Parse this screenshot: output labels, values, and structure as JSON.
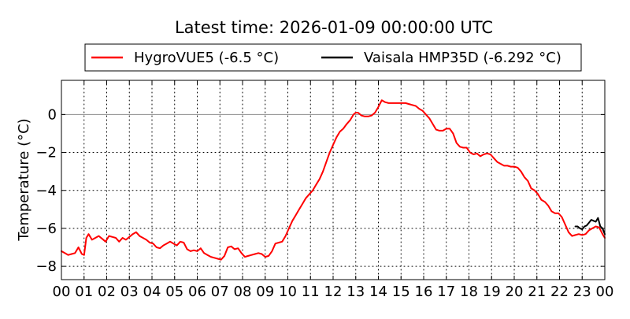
{
  "chart_data": {
    "type": "line",
    "title": "Latest time: 2026-01-09 00:00:00 UTC",
    "xlabel": "",
    "ylabel": "Temperature (°C)",
    "xlim": [
      0,
      24
    ],
    "ylim": [
      -8.7,
      1.8
    ],
    "x_ticks": [
      "00",
      "01",
      "02",
      "03",
      "04",
      "05",
      "06",
      "07",
      "08",
      "09",
      "10",
      "11",
      "12",
      "13",
      "14",
      "15",
      "16",
      "17",
      "18",
      "19",
      "20",
      "21",
      "22",
      "23",
      "00"
    ],
    "y_ticks": [
      -8,
      -6,
      -4,
      -2,
      0
    ],
    "grid": true,
    "legend_position": "top-center",
    "series": [
      {
        "name": "HygroVUE5 (-6.5 °C)",
        "color": "#ff0000",
        "x": [
          0,
          0.15,
          0.3,
          0.45,
          0.6,
          0.75,
          0.9,
          1.0,
          1.1,
          1.2,
          1.35,
          1.5,
          1.65,
          1.8,
          1.95,
          2.1,
          2.25,
          2.4,
          2.55,
          2.7,
          2.85,
          3.0,
          3.15,
          3.3,
          3.45,
          3.6,
          3.75,
          3.9,
          4.05,
          4.2,
          4.35,
          4.5,
          4.65,
          4.8,
          4.95,
          5.1,
          5.25,
          5.4,
          5.55,
          5.7,
          5.85,
          6.0,
          6.15,
          6.3,
          6.45,
          6.6,
          6.75,
          6.9,
          7.05,
          7.2,
          7.35,
          7.5,
          7.65,
          7.8,
          7.95,
          8.1,
          8.25,
          8.4,
          8.55,
          8.7,
          8.85,
          9.0,
          9.15,
          9.3,
          9.45,
          9.6,
          9.75,
          9.9,
          10.05,
          10.2,
          10.35,
          10.5,
          10.65,
          10.8,
          10.95,
          11.1,
          11.25,
          11.4,
          11.55,
          11.7,
          11.85,
          12.0,
          12.15,
          12.3,
          12.45,
          12.6,
          12.75,
          12.9,
          13.0,
          13.1,
          13.25,
          13.4,
          13.55,
          13.7,
          13.85,
          14.0,
          14.15,
          14.3,
          14.45,
          14.6,
          14.75,
          14.9,
          15.05,
          15.2,
          15.35,
          15.5,
          15.65,
          15.8,
          15.95,
          16.1,
          16.25,
          16.4,
          16.55,
          16.7,
          16.85,
          17.0,
          17.15,
          17.3,
          17.45,
          17.6,
          17.75,
          17.9,
          18.05,
          18.2,
          18.35,
          18.5,
          18.65,
          18.8,
          18.95,
          19.1,
          19.25,
          19.4,
          19.55,
          19.7,
          19.85,
          20.0,
          20.15,
          20.3,
          20.45,
          20.6,
          20.75,
          20.9,
          21.05,
          21.2,
          21.35,
          21.5,
          21.65,
          21.8,
          21.95,
          22.1,
          22.25,
          22.4,
          22.55,
          22.7,
          22.85,
          23.0,
          23.15,
          23.3,
          23.45,
          23.6,
          23.75,
          23.9,
          24.0
        ],
        "y": [
          -7.2,
          -7.3,
          -7.4,
          -7.35,
          -7.3,
          -7.0,
          -7.35,
          -7.4,
          -6.5,
          -6.3,
          -6.6,
          -6.5,
          -6.4,
          -6.55,
          -6.7,
          -6.4,
          -6.45,
          -6.5,
          -6.7,
          -6.5,
          -6.6,
          -6.45,
          -6.3,
          -6.2,
          -6.4,
          -6.5,
          -6.6,
          -6.75,
          -6.8,
          -7.0,
          -7.05,
          -6.9,
          -6.8,
          -6.7,
          -6.8,
          -6.9,
          -6.7,
          -6.75,
          -7.1,
          -7.2,
          -7.15,
          -7.2,
          -7.05,
          -7.3,
          -7.4,
          -7.5,
          -7.55,
          -7.6,
          -7.65,
          -7.45,
          -7.0,
          -6.95,
          -7.1,
          -7.05,
          -7.3,
          -7.5,
          -7.45,
          -7.4,
          -7.35,
          -7.3,
          -7.35,
          -7.5,
          -7.45,
          -7.2,
          -6.8,
          -6.75,
          -6.7,
          -6.4,
          -6.0,
          -5.6,
          -5.3,
          -5.0,
          -4.7,
          -4.4,
          -4.2,
          -4.0,
          -3.7,
          -3.4,
          -3.0,
          -2.5,
          -2.0,
          -1.6,
          -1.2,
          -0.9,
          -0.75,
          -0.5,
          -0.3,
          0.0,
          0.1,
          0.1,
          -0.05,
          -0.1,
          -0.1,
          -0.05,
          0.1,
          0.4,
          0.75,
          0.65,
          0.6,
          0.6,
          0.6,
          0.6,
          0.6,
          0.6,
          0.55,
          0.5,
          0.45,
          0.3,
          0.2,
          0.0,
          -0.2,
          -0.5,
          -0.8,
          -0.85,
          -0.85,
          -0.75,
          -0.75,
          -1.0,
          -1.5,
          -1.7,
          -1.75,
          -1.75,
          -2.0,
          -2.1,
          -2.05,
          -2.2,
          -2.1,
          -2.05,
          -2.1,
          -2.3,
          -2.5,
          -2.6,
          -2.7,
          -2.7,
          -2.75,
          -2.75,
          -2.8,
          -3.0,
          -3.3,
          -3.5,
          -3.9,
          -4.0,
          -4.2,
          -4.5,
          -4.6,
          -4.8,
          -5.1,
          -5.2,
          -5.2,
          -5.4,
          -5.8,
          -6.2,
          -6.4,
          -6.35,
          -6.3,
          -6.35,
          -6.3,
          -6.1,
          -6.0,
          -5.9,
          -5.95,
          -6.3,
          -6.5
        ]
      },
      {
        "name": "Vaisala HMP35D (-6.292 °C)",
        "color": "#000000",
        "x": [
          22.7,
          22.8,
          22.9,
          23.0,
          23.1,
          23.2,
          23.3,
          23.4,
          23.5,
          23.6,
          23.7,
          23.8,
          23.9,
          24.0
        ],
        "y": [
          -5.9,
          -5.9,
          -6.0,
          -6.05,
          -5.9,
          -5.85,
          -5.7,
          -5.55,
          -5.6,
          -5.65,
          -5.45,
          -5.9,
          -6.0,
          -6.3
        ]
      }
    ]
  }
}
